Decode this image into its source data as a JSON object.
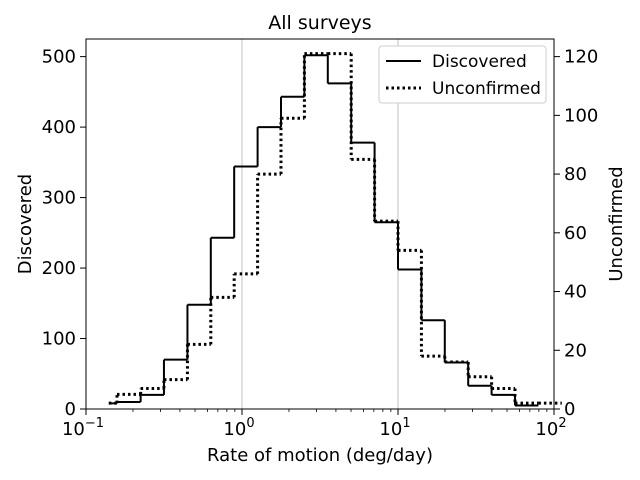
{
  "chart_data": {
    "type": "histogram",
    "title": "All surveys",
    "xlabel": "Rate of motion (deg/day)",
    "ylabel_left": "Discovered",
    "ylabel_right": "Unconfirmed",
    "xscale": "log",
    "xlim": [
      0.1,
      100
    ],
    "ylim_left": [
      0,
      525
    ],
    "ylim_right": [
      0,
      126
    ],
    "x_ticks": [
      {
        "base": "10",
        "exp": "−1",
        "value": 0.1
      },
      {
        "base": "10",
        "exp": "0",
        "value": 1
      },
      {
        "base": "10",
        "exp": "1",
        "value": 10
      },
      {
        "base": "10",
        "exp": "2",
        "value": 100
      }
    ],
    "y_ticks_left": [
      0,
      100,
      200,
      300,
      400,
      500
    ],
    "y_ticks_right": [
      0,
      20,
      40,
      60,
      80,
      100,
      120
    ],
    "grid": "vertical major",
    "legend_position": "top-right",
    "legend": [
      {
        "label": "Discovered",
        "style": "solid"
      },
      {
        "label": "Unconfirmed",
        "style": "dotted"
      }
    ],
    "series": [
      {
        "name": "Discovered",
        "axis": "left",
        "style": "solid",
        "edges": [
          0.14,
          0.158,
          0.224,
          0.316,
          0.447,
          0.631,
          0.891,
          1.259,
          1.778,
          2.512,
          3.548,
          5.012,
          7.079,
          10.0,
          14.13,
          19.95,
          28.18,
          39.81,
          56.23
        ],
        "values": [
          8,
          10,
          20,
          70,
          148,
          243,
          344,
          400,
          443,
          502,
          462,
          378,
          265,
          198,
          126,
          66,
          33,
          20,
          5
        ]
      },
      {
        "name": "Unconfirmed",
        "axis": "right",
        "style": "dotted",
        "edges": [
          0.14,
          0.158,
          0.224,
          0.316,
          0.447,
          0.631,
          0.891,
          1.259,
          1.778,
          2.512,
          3.548,
          5.012,
          7.079,
          10.0,
          14.13,
          19.95,
          28.18,
          39.81,
          56.23,
          79.43
        ],
        "values": [
          2,
          5,
          7,
          10,
          22,
          38,
          46,
          80,
          99,
          121,
          121,
          85,
          64,
          54,
          18,
          16,
          11,
          7,
          2,
          2
        ]
      }
    ]
  }
}
